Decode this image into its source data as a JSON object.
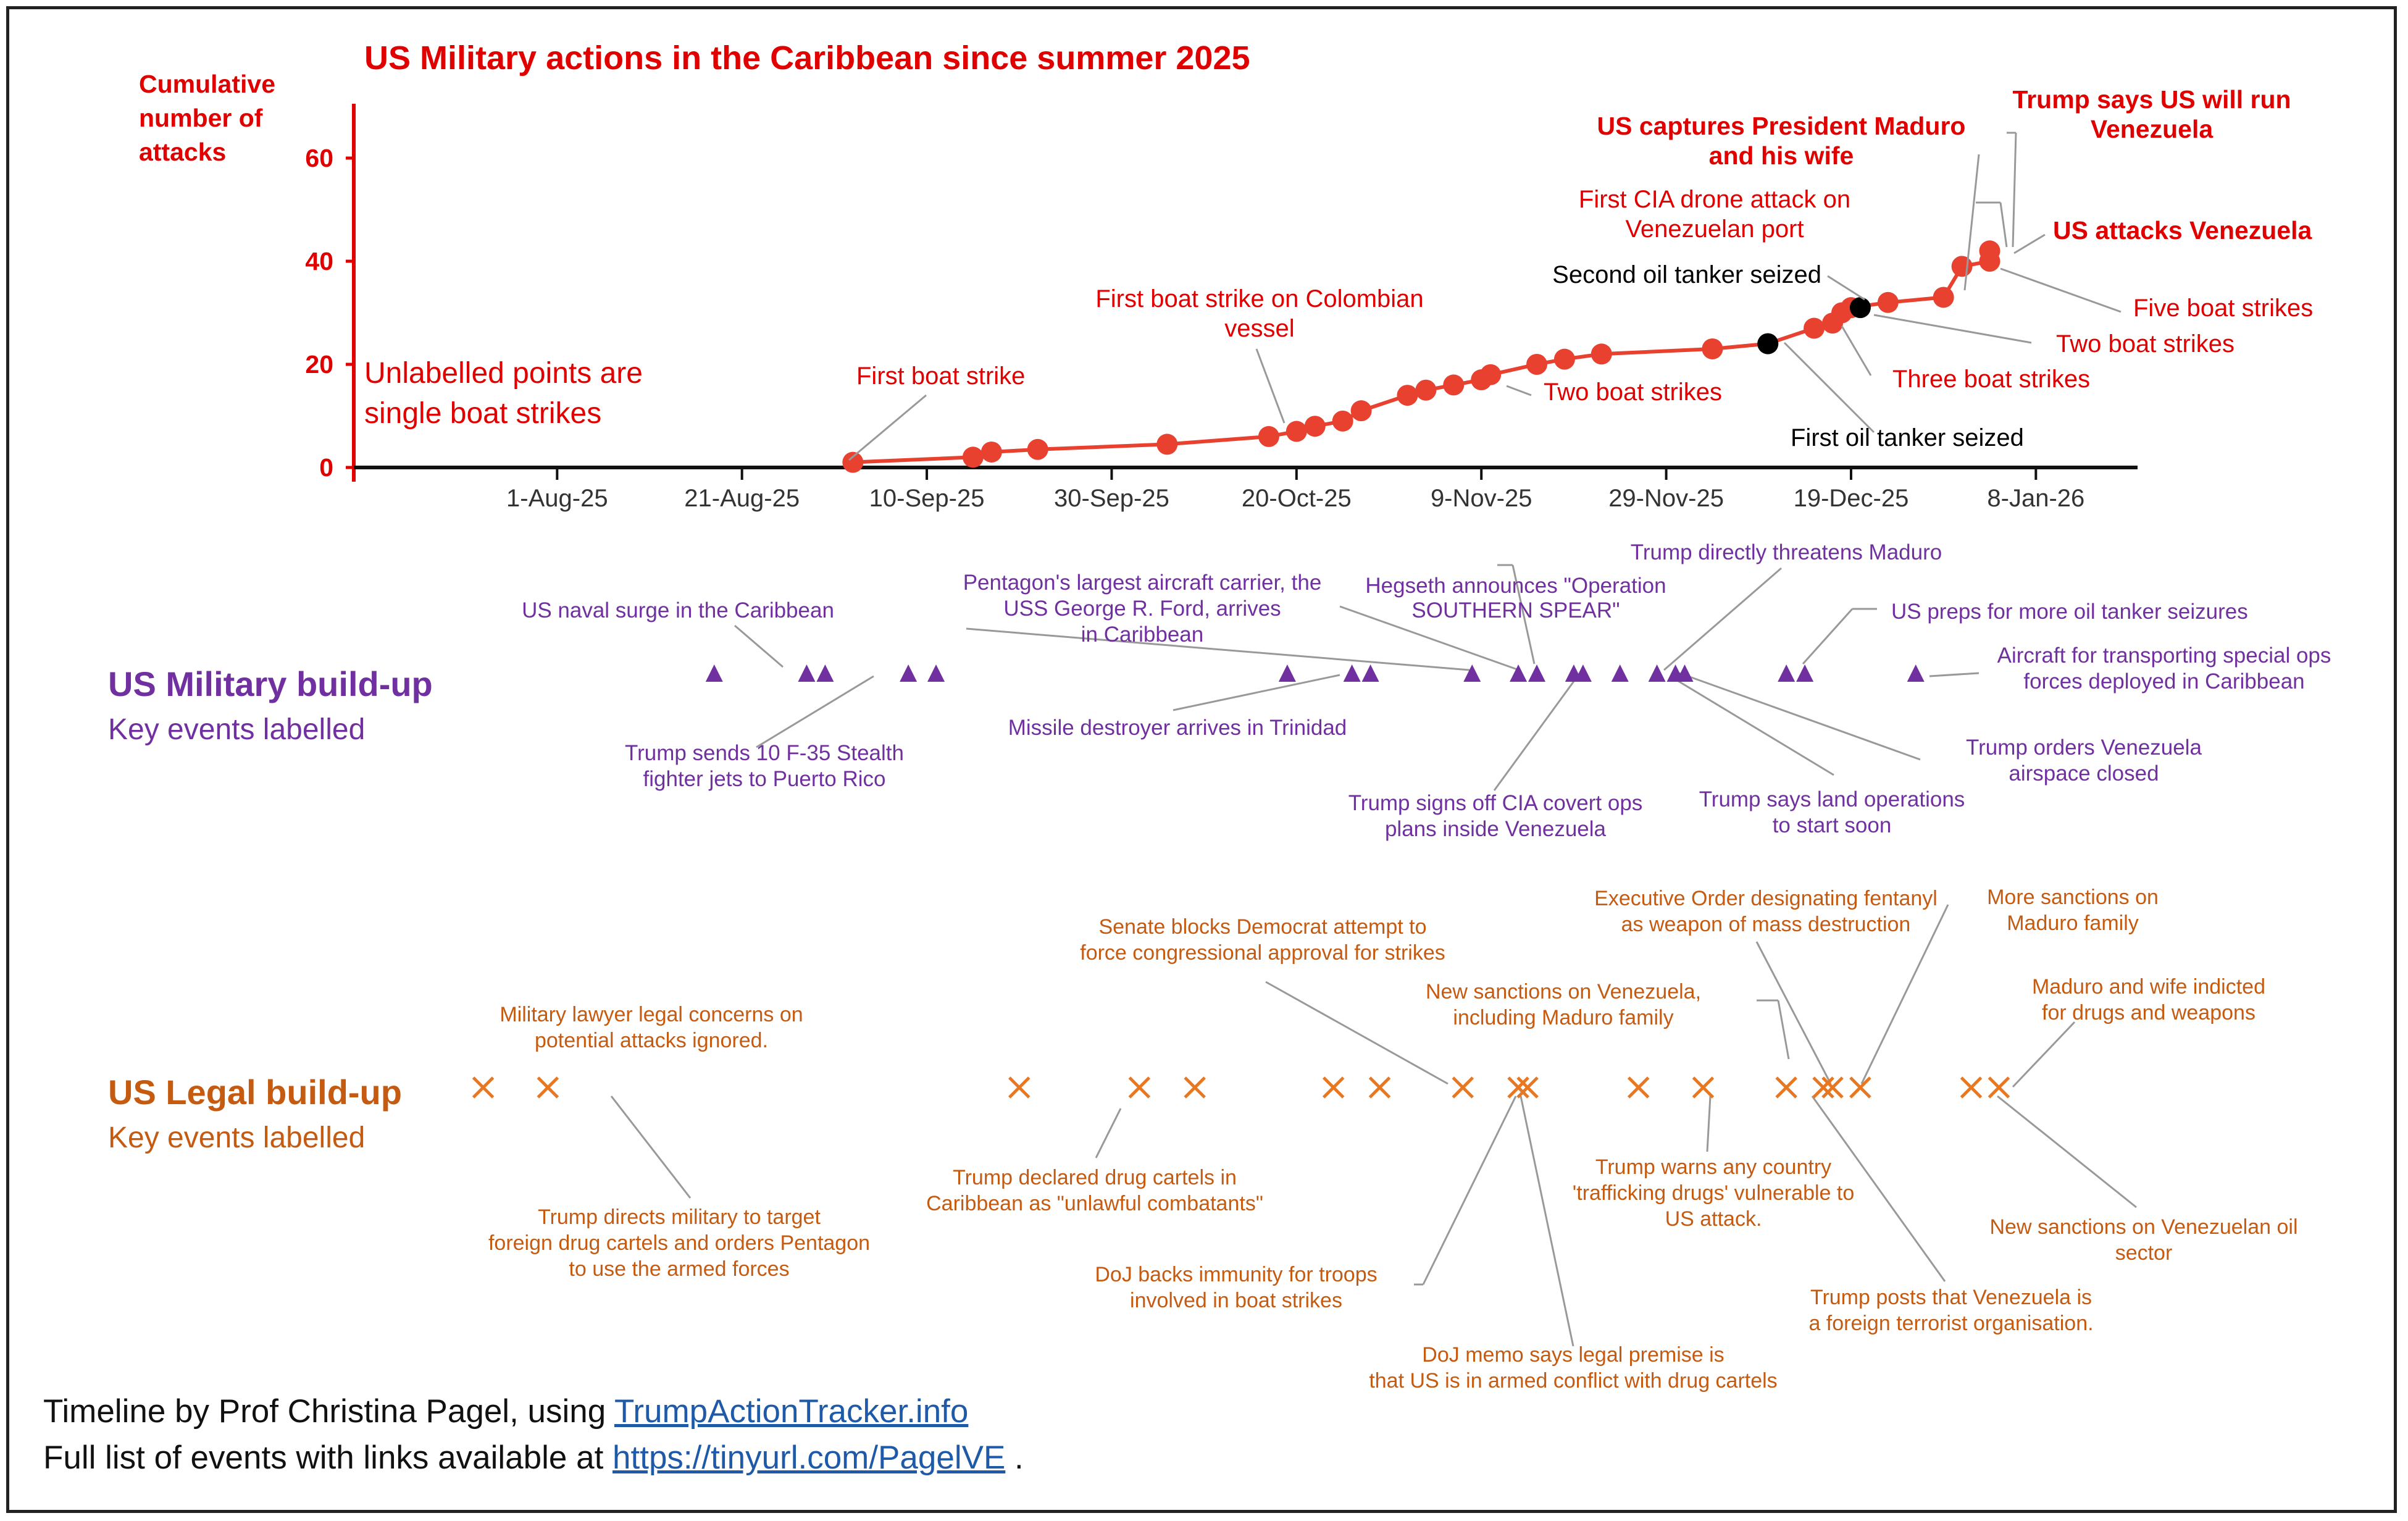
{
  "colors": {
    "red": "#e8412f",
    "dark_red": "#e00000",
    "purple": "#7030a0",
    "orange": "#e87722",
    "legal_text": "#c55a11",
    "black": "#000000",
    "link": "#1f5aa8"
  },
  "chart_data": {
    "type": "line",
    "title": "US Military actions in the Caribbean since summer 2025",
    "ylabel": "Cumulative number of attacks",
    "ylim": [
      0,
      70
    ],
    "yticks": [
      0,
      20,
      40,
      60
    ],
    "x_range": [
      "2025-07-10",
      "2026-01-19"
    ],
    "xticks": [
      {
        "date": "2025-08-01",
        "label": "1-Aug-25"
      },
      {
        "date": "2025-08-21",
        "label": "21-Aug-25"
      },
      {
        "date": "2025-09-10",
        "label": "10-Sep-25"
      },
      {
        "date": "2025-09-30",
        "label": "30-Sep-25"
      },
      {
        "date": "2025-10-20",
        "label": "20-Oct-25"
      },
      {
        "date": "2025-11-09",
        "label": "9-Nov-25"
      },
      {
        "date": "2025-11-29",
        "label": "29-Nov-25"
      },
      {
        "date": "2025-12-19",
        "label": "19-Dec-25"
      },
      {
        "date": "2026-01-08",
        "label": "8-Jan-26"
      }
    ],
    "note": "Unlabelled points are single boat strikes",
    "series": [
      {
        "name": "Cumulative attacks",
        "points": [
          {
            "x": "2025-09-02",
            "y": 1
          },
          {
            "x": "2025-09-15",
            "y": 2
          },
          {
            "x": "2025-09-17",
            "y": 3
          },
          {
            "x": "2025-09-22",
            "y": 3.5
          },
          {
            "x": "2025-10-06",
            "y": 4.5
          },
          {
            "x": "2025-10-17",
            "y": 6
          },
          {
            "x": "2025-10-20",
            "y": 7
          },
          {
            "x": "2025-10-22",
            "y": 8
          },
          {
            "x": "2025-10-25",
            "y": 9
          },
          {
            "x": "2025-10-27",
            "y": 11
          },
          {
            "x": "2025-11-01",
            "y": 14
          },
          {
            "x": "2025-11-03",
            "y": 15
          },
          {
            "x": "2025-11-06",
            "y": 16
          },
          {
            "x": "2025-11-09",
            "y": 17
          },
          {
            "x": "2025-11-10",
            "y": 18
          },
          {
            "x": "2025-11-15",
            "y": 20
          },
          {
            "x": "2025-11-18",
            "y": 21
          },
          {
            "x": "2025-11-22",
            "y": 22
          },
          {
            "x": "2025-12-04",
            "y": 23
          },
          {
            "x": "2025-12-10",
            "y": 24
          },
          {
            "x": "2025-12-15",
            "y": 27
          },
          {
            "x": "2025-12-17",
            "y": 28
          },
          {
            "x": "2025-12-18",
            "y": 30
          },
          {
            "x": "2025-12-19",
            "y": 31
          },
          {
            "x": "2025-12-23",
            "y": 32
          },
          {
            "x": "2025-12-29",
            "y": 33
          },
          {
            "x": "2025-12-31",
            "y": 39
          },
          {
            "x": "2026-01-03",
            "y": 40
          },
          {
            "x": "2026-01-03",
            "y": 42
          }
        ]
      }
    ],
    "oil_tanker_points": [
      {
        "x": "2025-12-10",
        "y": 24
      },
      {
        "x": "2025-12-20",
        "y": 31
      }
    ],
    "annotations": [
      {
        "text": "First boat strike",
        "bold": false,
        "color": "red"
      },
      {
        "text": "First boat strike on Colombian vessel",
        "bold": false,
        "color": "red"
      },
      {
        "text": "Two boat strikes",
        "bold": false,
        "color": "red"
      },
      {
        "text": "Second oil tanker seized",
        "bold": false,
        "color": "black"
      },
      {
        "text": "First oil tanker seized",
        "bold": false,
        "color": "black"
      },
      {
        "text": "Three boat strikes",
        "bold": false,
        "color": "red"
      },
      {
        "text": "Two boat strikes",
        "bold": false,
        "color": "red"
      },
      {
        "text": "Five boat strikes",
        "bold": false,
        "color": "red"
      },
      {
        "text": "First CIA drone attack on Venezuelan port",
        "bold": false,
        "color": "red"
      },
      {
        "text": "US captures President Maduro and his wife",
        "bold": true,
        "color": "red"
      },
      {
        "text": "Trump says US will run Venezuela",
        "bold": true,
        "color": "red"
      },
      {
        "text": "US attacks Venezuela",
        "bold": true,
        "color": "red"
      }
    ]
  },
  "military": {
    "title": "US Military build-up",
    "subtitle": "Key events labelled",
    "marker_dates": [
      "2025-08-18",
      "2025-08-28",
      "2025-08-30",
      "2025-09-08",
      "2025-09-11",
      "2025-10-19",
      "2025-10-26",
      "2025-10-28",
      "2025-11-08",
      "2025-11-13",
      "2025-11-15",
      "2025-11-19",
      "2025-11-20",
      "2025-11-24",
      "2025-11-28",
      "2025-11-30",
      "2025-12-01",
      "2025-12-12",
      "2025-12-14",
      "2025-12-26"
    ],
    "labels": [
      "US naval surge in the Caribbean",
      "Pentagon's largest aircraft carrier, the USS George R. Ford, arrives in Caribbean",
      "Hegseth announces \"Operation SOUTHERN SPEAR\"",
      "Trump directly threatens Maduro",
      "US preps for more oil tanker seizures",
      "Aircraft for transporting special ops forces deployed in Caribbean",
      "Trump sends 10 F-35 Stealth fighter jets to Puerto Rico",
      "Missile destroyer arrives in Trinidad",
      "Trump signs off CIA covert ops plans inside Venezuela",
      "Trump says land operations to start soon",
      "Trump orders Venezuela airspace closed"
    ]
  },
  "legal": {
    "title": "US Legal build-up",
    "subtitle": "Key events labelled",
    "marker_dates": [
      "2025-07-24",
      "2025-07-31",
      "2025-09-20",
      "2025-10-03",
      "2025-10-09",
      "2025-10-24",
      "2025-10-29",
      "2025-11-07",
      "2025-11-13",
      "2025-11-14",
      "2025-11-26",
      "2025-12-03",
      "2025-12-12",
      "2025-12-16",
      "2025-12-17",
      "2025-12-20",
      "2026-01-01",
      "2026-01-04"
    ],
    "labels": [
      "Military lawyer legal concerns on potential attacks ignored.",
      "Senate blocks Democrat attempt to force congressional approval for strikes",
      "Executive Order designating fentanyl as weapon of mass destruction",
      "More sanctions on Maduro family",
      "New sanctions on Venezuela, including Maduro family",
      "Maduro and wife indicted for drugs and weapons",
      "Trump directs military to target foreign drug cartels and orders Pentagon to use the armed forces",
      "Trump declared drug cartels in Caribbean as \"unlawful combatants\"",
      "Trump warns any country 'trafficking drugs' vulnerable to US attack.",
      "New sanctions on Venezuelan oil sector",
      "DoJ backs immunity for troops involved in boat strikes",
      "Trump posts that Venezuela is a foreign terrorist organisation.",
      "DoJ memo says legal premise is that US is in armed conflict with drug cartels"
    ]
  },
  "footer": {
    "line1_prefix": "Timeline by Prof Christina Pagel, using ",
    "line1_link": "TrumpActionTracker.info ",
    "line2_prefix": "Full list of events with links available at ",
    "line2_link": "https://tinyurl.com/PagelVE",
    "line2_suffix": " ."
  }
}
